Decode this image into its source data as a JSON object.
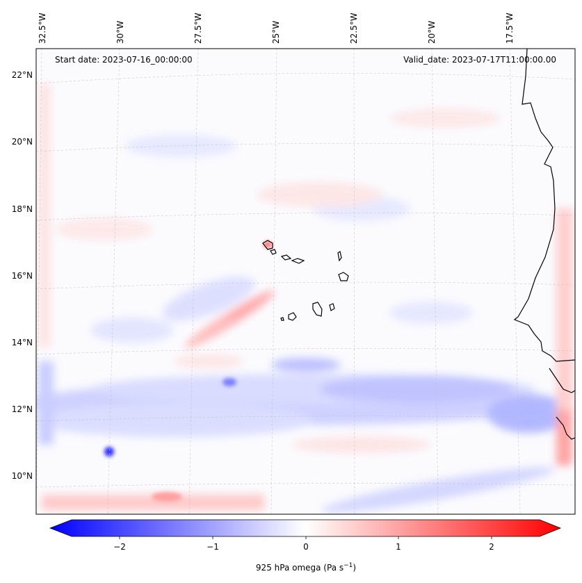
{
  "header": {
    "start_date": "Start date: 2023-07-16_00:00:00",
    "valid_date": "Valid_date: 2023-07-17T11:00:00.00"
  },
  "map": {
    "longitude_labels": [
      "32.5°W",
      "30°W",
      "27.5°W",
      "25°W",
      "22.5°W",
      "20°W",
      "17.5°W"
    ],
    "latitude_labels": [
      "22°N",
      "20°N",
      "18°N",
      "16°N",
      "14°N",
      "12°N",
      "10°N"
    ],
    "extent": {
      "lon_min": -32.6,
      "lon_max": -15.8,
      "lat_min": 8.8,
      "lat_max": 22.8
    },
    "field": "925 hPa omega",
    "gridlines": true
  },
  "colorbar": {
    "label": "925 hPa omega (Pa s",
    "label_superscript": "−1",
    "label_suffix": ")",
    "tick_labels": [
      "−2",
      "−1",
      "0",
      "1",
      "2"
    ],
    "range": [
      -2.6,
      2.6
    ],
    "colormap": "bwr",
    "low_color": "#0000ff",
    "mid_color": "#ffffff",
    "high_color": "#ff0000",
    "extend": "both"
  }
}
